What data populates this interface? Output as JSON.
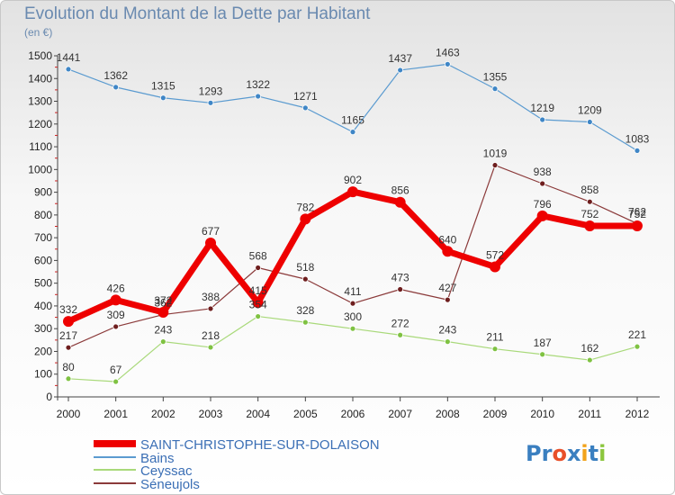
{
  "title": "Evolution du Montant de la Dette par Habitant",
  "unit": "(en €)",
  "logo": "Proxiti",
  "logo_colors": [
    "#3a7fc0",
    "#3a7fc0",
    "#e8502a",
    "#3a7fc0",
    "#f2a31b",
    "#3a7fc0",
    "#8cc63e"
  ],
  "chart_data": {
    "type": "line",
    "x": [
      "2000",
      "2001",
      "2002",
      "2003",
      "2004",
      "2005",
      "2006",
      "2007",
      "2008",
      "2009",
      "2010",
      "2011",
      "2012"
    ],
    "ylim": [
      0,
      1500
    ],
    "yticks": [
      0,
      100,
      200,
      300,
      400,
      500,
      600,
      700,
      800,
      900,
      1000,
      1100,
      1200,
      1300,
      1400,
      1500
    ],
    "grid": false,
    "legend_position": "bottom-left",
    "series": [
      {
        "name": "Bains",
        "color": "#5b9bd0",
        "point_color": "#3f86c6",
        "width": 1.2,
        "radius": 3,
        "values": [
          1441,
          1362,
          1315,
          1293,
          1322,
          1271,
          1165,
          1437,
          1463,
          1355,
          1219,
          1209,
          1083
        ]
      },
      {
        "name": "Ceyssac",
        "color": "#a9d97a",
        "point_color": "#7fc242",
        "width": 1.2,
        "radius": 3,
        "values": [
          80,
          67,
          243,
          218,
          354,
          328,
          300,
          272,
          243,
          211,
          187,
          162,
          221
        ]
      },
      {
        "name": "Séneujols",
        "color": "#8b3a3a",
        "point_color": "#6e1e1e",
        "width": 1.2,
        "radius": 3,
        "values": [
          217,
          309,
          362,
          388,
          568,
          518,
          411,
          473,
          427,
          1019,
          938,
          858,
          762
        ]
      },
      {
        "name": "SAINT-CHRISTOPHE-SUR-DOLAISON",
        "color": "#ee0000",
        "point_color": "#ee0000",
        "width": 7,
        "radius": 6,
        "values": [
          332,
          426,
          372,
          677,
          415,
          782,
          902,
          856,
          640,
          572,
          796,
          752,
          752
        ]
      }
    ],
    "data_labels": [
      [
        "1441",
        "1362",
        "1315",
        "1293",
        "1322",
        "1271",
        "1165",
        "1437",
        "1463",
        "1355",
        "1219",
        "1209",
        "1083"
      ],
      [
        "80",
        "67",
        "243",
        "218",
        "354",
        "328",
        "300",
        "272",
        "243",
        "211",
        "187",
        "162",
        "221"
      ],
      [
        "217",
        "309",
        "362",
        "388",
        "568",
        "518",
        "411",
        "473",
        "427",
        "1019",
        "938",
        "858",
        "762"
      ],
      [
        "332",
        "426",
        "372",
        "677",
        "415",
        "782",
        "902",
        "856",
        "640",
        "572",
        "796",
        "752",
        "752"
      ]
    ],
    "legend": [
      "SAINT-CHRISTOPHE-SUR-DOLAISON",
      "Bains",
      "Ceyssac",
      "Séneujols"
    ]
  }
}
